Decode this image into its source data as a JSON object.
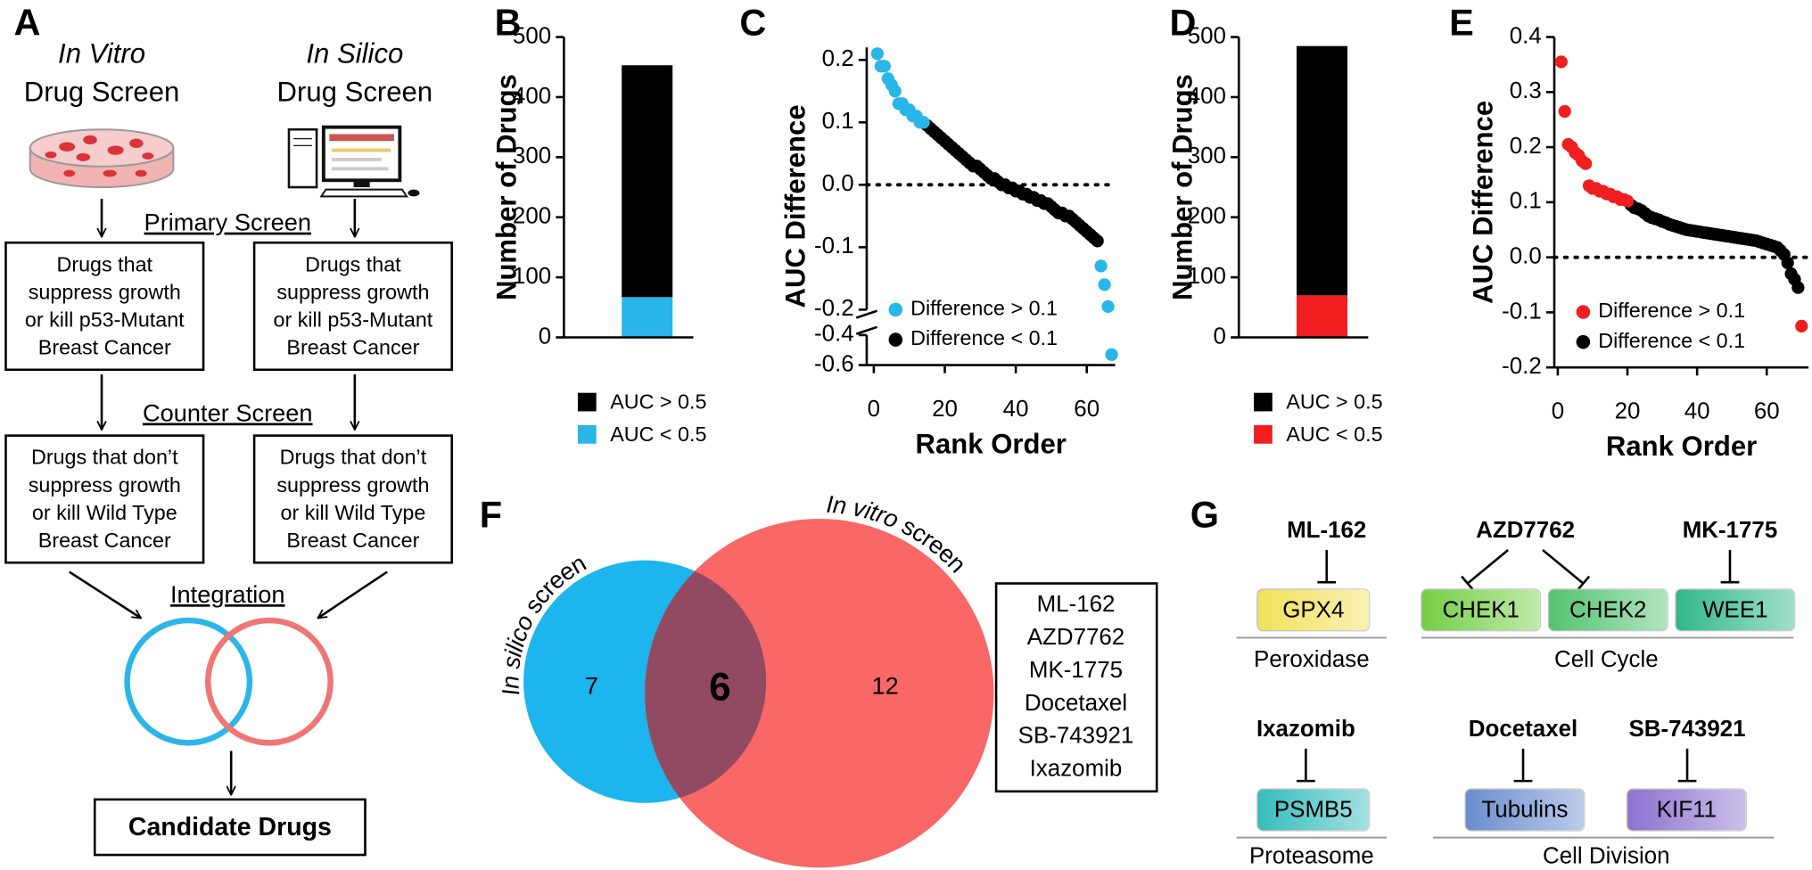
{
  "panel_labels": [
    "A",
    "B",
    "C",
    "D",
    "E",
    "F",
    "G"
  ],
  "panel_a": {
    "screens": [
      {
        "title_italic": "In Vitro",
        "title": "Drug Screen"
      },
      {
        "title_italic": "In Silico",
        "title": "Drug Screen"
      }
    ],
    "primary_screen": "Primary Screen",
    "primary_boxes": [
      [
        "Drugs that",
        "suppress growth",
        "or kill p53-Mutant",
        "Breast Cancer"
      ],
      [
        "Drugs that",
        "suppress growth",
        "or kill p53-Mutant",
        "Breast Cancer"
      ]
    ],
    "counter_screen": "Counter Screen",
    "counter_boxes": [
      [
        "Drugs that don’t",
        "suppress growth",
        "or kill Wild Type",
        "Breast Cancer"
      ],
      [
        "Drugs that don’t",
        "suppress growth",
        "or kill Wild Type",
        "Breast Cancer"
      ]
    ],
    "integration": "Integration",
    "result": "Candidate Drugs"
  },
  "chart_data": [
    {
      "type": "stacked_bar",
      "categories": [
        null
      ],
      "series": [
        {
          "name": "AUC > 0.5",
          "color": "#000000",
          "values": [
            386
          ]
        },
        {
          "name": "AUC < 0.5",
          "color": "#29b6e8",
          "values": [
            67
          ]
        }
      ],
      "ylabel": "Number of Drugs",
      "ylim": [
        0,
        500
      ],
      "yticks": [
        0,
        100,
        200,
        300,
        400,
        500
      ],
      "legend": "bottom"
    },
    {
      "type": "scatter",
      "xlabel": "Rank Order",
      "ylabel": "AUC Difference",
      "xlim": [
        -2,
        68
      ],
      "xticks": [
        0,
        20,
        40,
        60
      ],
      "ylim": [
        -0.6,
        0.22
      ],
      "ybreak": [
        -0.4,
        -0.2
      ],
      "yticks": [
        0.2,
        0.1,
        {
          "value": 0,
          "label": "0.0"
        },
        -0.1,
        -0.2,
        -0.4,
        -0.6
      ],
      "reference_line": 0,
      "legend": "lower left",
      "series": [
        {
          "name": "Difference > 0.1",
          "color": "#29b6e8",
          "x": [
            1,
            2,
            3,
            4,
            5,
            6,
            7,
            8,
            9,
            10,
            11,
            12,
            13,
            14,
            64,
            65,
            66,
            67
          ],
          "values": [
            0.21,
            0.19,
            0.19,
            0.17,
            0.16,
            0.15,
            0.13,
            0.13,
            0.12,
            0.12,
            0.11,
            0.11,
            0.1,
            0.1,
            -0.13,
            -0.16,
            -0.195,
            -0.53
          ]
        },
        {
          "name": "Difference < 0.1",
          "color": "#000000",
          "x": [
            15,
            16,
            17,
            18,
            19,
            20,
            21,
            22,
            23,
            24,
            25,
            26,
            27,
            28,
            29,
            30,
            31,
            32,
            33,
            34,
            35,
            36,
            37,
            38,
            39,
            40,
            41,
            42,
            43,
            44,
            45,
            46,
            47,
            48,
            49,
            50,
            51,
            52,
            53,
            54,
            55,
            56,
            57,
            58,
            59,
            60,
            61,
            62,
            63
          ],
          "values": [
            0.095,
            0.09,
            0.085,
            0.08,
            0.075,
            0.07,
            0.065,
            0.06,
            0.055,
            0.05,
            0.045,
            0.04,
            0.035,
            0.03,
            0.03,
            0.025,
            0.02,
            0.015,
            0.01,
            0.01,
            0.005,
            0.0,
            0.0,
            -0.005,
            -0.005,
            -0.01,
            -0.01,
            -0.015,
            -0.015,
            -0.02,
            -0.02,
            -0.025,
            -0.025,
            -0.03,
            -0.03,
            -0.035,
            -0.04,
            -0.045,
            -0.045,
            -0.05,
            -0.05,
            -0.055,
            -0.06,
            -0.065,
            -0.07,
            -0.075,
            -0.08,
            -0.085,
            -0.09
          ]
        }
      ]
    },
    {
      "type": "stacked_bar",
      "categories": [
        null
      ],
      "series": [
        {
          "name": "AUC > 0.5",
          "color": "#000000",
          "values": [
            415
          ]
        },
        {
          "name": "AUC < 0.5",
          "color": "#f01e1e",
          "values": [
            70
          ]
        }
      ],
      "ylabel": "Number of Drugs",
      "ylim": [
        0,
        500
      ],
      "yticks": [
        0,
        100,
        200,
        300,
        400,
        500
      ],
      "legend": "bottom"
    },
    {
      "type": "scatter",
      "xlabel": "Rank Order",
      "ylabel": "AUC Difference",
      "xlim": [
        -1,
        72
      ],
      "xticks": [
        0,
        20,
        40,
        60
      ],
      "ylim": [
        -0.2,
        0.4
      ],
      "yticks": [
        0.4,
        0.3,
        0.2,
        0.1,
        {
          "value": 0,
          "label": "0.0"
        },
        -0.1,
        -0.2
      ],
      "reference_line": 0,
      "legend": "lower left",
      "series": [
        {
          "name": "Difference > 0.1",
          "color": "#f01e1e",
          "x": [
            1,
            2,
            3,
            4,
            5,
            6,
            7,
            8,
            9,
            10,
            11,
            12,
            13,
            14,
            15,
            16,
            17,
            18,
            19,
            20,
            70
          ],
          "values": [
            0.355,
            0.265,
            0.205,
            0.2,
            0.19,
            0.185,
            0.175,
            0.17,
            0.13,
            0.125,
            0.125,
            0.12,
            0.12,
            0.115,
            0.115,
            0.11,
            0.11,
            0.105,
            0.105,
            0.102,
            -0.125
          ]
        },
        {
          "name": "Difference < 0.1",
          "color": "#000000",
          "x": [
            21,
            22,
            23,
            24,
            25,
            26,
            27,
            28,
            29,
            30,
            31,
            32,
            33,
            34,
            35,
            36,
            37,
            38,
            39,
            40,
            41,
            42,
            43,
            44,
            45,
            46,
            47,
            48,
            49,
            50,
            51,
            52,
            53,
            54,
            55,
            56,
            57,
            58,
            59,
            60,
            61,
            62,
            63,
            64,
            65,
            66,
            67,
            68,
            69
          ],
          "values": [
            0.095,
            0.09,
            0.088,
            0.085,
            0.08,
            0.075,
            0.072,
            0.07,
            0.068,
            0.065,
            0.063,
            0.06,
            0.058,
            0.056,
            0.054,
            0.052,
            0.05,
            0.049,
            0.048,
            0.047,
            0.046,
            0.045,
            0.044,
            0.043,
            0.042,
            0.041,
            0.04,
            0.039,
            0.038,
            0.037,
            0.036,
            0.035,
            0.034,
            0.033,
            0.032,
            0.031,
            0.03,
            0.028,
            0.026,
            0.024,
            0.022,
            0.02,
            0.018,
            0.012,
            0.005,
            -0.01,
            -0.03,
            -0.04,
            -0.055
          ]
        }
      ]
    }
  ],
  "panel_f": {
    "sets": [
      {
        "label_italic": "In silico",
        "label": "screen",
        "count": 7
      },
      {
        "label_italic": "In vitro",
        "label": "screen",
        "count": 12
      }
    ],
    "overlap": 6,
    "drug_list": [
      "ML-162",
      "AZD7762",
      "MK-1775",
      "Docetaxel",
      "SB-743921",
      "Ixazomib"
    ]
  },
  "panel_g": {
    "drugs": [
      "ML-162",
      "AZD7762",
      "MK-1775",
      "Ixazomib",
      "Docetaxel",
      "SB-743921"
    ],
    "targets": [
      "GPX4",
      "CHEK1",
      "CHEK2",
      "WEE1",
      "PSMB5",
      "Tubulins",
      "KIF11"
    ],
    "classes": [
      "Peroxidase",
      "Cell Cycle",
      "Proteasome",
      "Cell Division"
    ]
  }
}
